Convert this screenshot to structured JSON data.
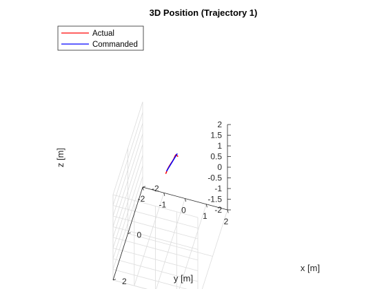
{
  "chart_data": {
    "type": "line",
    "title": "3D Position (Trajectory 1)",
    "xlabel": "x [m]",
    "ylabel": "y [m]",
    "zlabel": "z [m]",
    "xlim": [
      -2,
      2
    ],
    "ylim": [
      -2,
      2
    ],
    "zlim": [
      -2,
      2
    ],
    "xticks": [
      "-2",
      "0",
      "2"
    ],
    "yticks": [
      "2",
      "1",
      "0",
      "-1",
      "-2"
    ],
    "zticks": [
      "2",
      "1.5",
      "1",
      "0.5",
      "0",
      "-0.5",
      "-1",
      "-1.5",
      "-2"
    ],
    "grid": true,
    "legend_position": "top-left",
    "series": [
      {
        "name": "Actual",
        "color": "#ff0000",
        "points": [
          {
            "x": -1.05,
            "y": 0.0,
            "z": 1.0
          },
          {
            "x": -1.0,
            "y": -0.01,
            "z": 1.08
          },
          {
            "x": -0.92,
            "y": -0.02,
            "z": 1.2
          },
          {
            "x": -0.82,
            "y": -0.02,
            "z": 1.33
          },
          {
            "x": -0.68,
            "y": -0.01,
            "z": 1.43
          },
          {
            "x": -0.5,
            "y": 0.0,
            "z": 1.51
          },
          {
            "x": -0.3,
            "y": 0.0,
            "z": 1.6
          },
          {
            "x": -0.1,
            "y": -0.01,
            "z": 1.7
          },
          {
            "x": 0.1,
            "y": -0.02,
            "z": 1.79
          },
          {
            "x": 0.3,
            "y": -0.03,
            "z": 1.86
          },
          {
            "x": 0.45,
            "y": -0.03,
            "z": 1.88
          },
          {
            "x": 0.5,
            "y": -0.04,
            "z": 1.87
          }
        ]
      },
      {
        "name": "Commanded",
        "color": "#0000ff",
        "points": [
          {
            "x": -0.95,
            "y": 0.0,
            "z": 1.25
          },
          {
            "x": 0.5,
            "y": 0.0,
            "z": 2.0
          }
        ]
      }
    ]
  }
}
